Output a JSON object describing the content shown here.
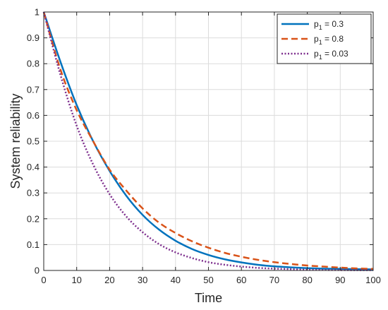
{
  "chart_data": {
    "type": "line",
    "title": "",
    "xlabel": "Time",
    "ylabel": "System reliability",
    "xlim": [
      0,
      100
    ],
    "ylim": [
      0,
      1
    ],
    "xticks": [
      "0",
      "10",
      "20",
      "30",
      "40",
      "50",
      "60",
      "70",
      "80",
      "90",
      "100"
    ],
    "yticks": [
      "0",
      "0.1",
      "0.2",
      "0.3",
      "0.4",
      "0.5",
      "0.6",
      "0.7",
      "0.8",
      "0.9",
      "1"
    ],
    "grid": true,
    "legend_position": "top-right",
    "x": [
      0,
      5,
      10,
      15,
      20,
      25,
      30,
      35,
      40,
      45,
      50,
      55,
      60,
      65,
      70,
      75,
      80,
      85,
      90,
      95,
      100
    ],
    "series": [
      {
        "name": "p1 = 0.3",
        "legend_base": "p",
        "legend_sub": "1",
        "legend_rest": " = 0.3",
        "color": "#0072BD",
        "style": "solid",
        "values": [
          1.0,
          0.81,
          0.64,
          0.5,
          0.385,
          0.29,
          0.215,
          0.158,
          0.115,
          0.083,
          0.06,
          0.043,
          0.031,
          0.022,
          0.016,
          0.012,
          0.009,
          0.007,
          0.006,
          0.005,
          0.004
        ]
      },
      {
        "name": "p1 = 0.8",
        "legend_base": "p",
        "legend_sub": "1",
        "legend_rest": " = 0.8",
        "color": "#D95319",
        "style": "dashed",
        "values": [
          1.0,
          0.78,
          0.62,
          0.5,
          0.39,
          0.31,
          0.24,
          0.185,
          0.145,
          0.113,
          0.088,
          0.068,
          0.053,
          0.041,
          0.032,
          0.025,
          0.019,
          0.015,
          0.011,
          0.008,
          0.006
        ]
      },
      {
        "name": "p1 = 0.03",
        "legend_base": "p",
        "legend_sub": "1",
        "legend_rest": " = 0.03",
        "color": "#7E2F8E",
        "style": "dotted",
        "values": [
          1.0,
          0.76,
          0.56,
          0.41,
          0.295,
          0.21,
          0.148,
          0.102,
          0.07,
          0.048,
          0.032,
          0.022,
          0.015,
          0.01,
          0.007,
          0.005,
          0.003,
          0.002,
          0.0015,
          0.001,
          0.001
        ]
      }
    ]
  }
}
